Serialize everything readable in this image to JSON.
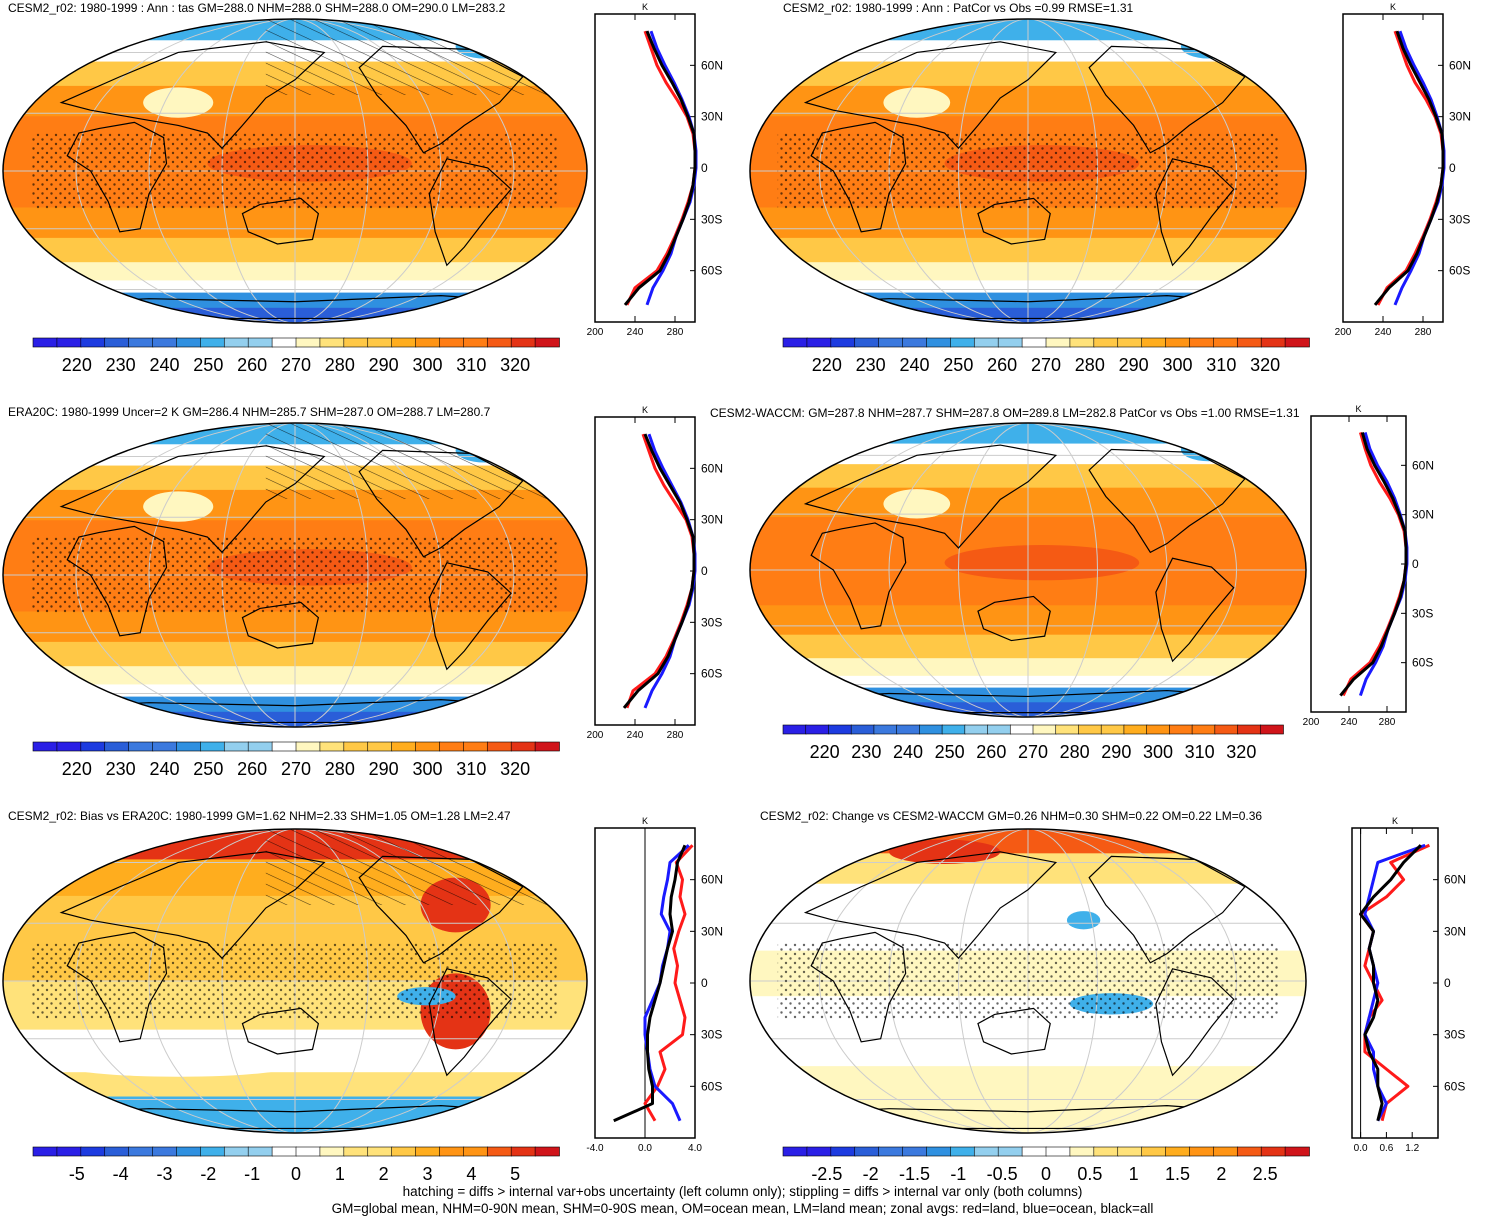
{
  "panels": [
    {
      "id": "p1",
      "title": "CESM2_r02: 1980-1999 : Ann : tas GM=288.0 NHM=288.0 SHM=288.0 OM=290.0 LM=283.2",
      "field": "temp",
      "hatching": true,
      "stippling": true,
      "colorbar_labels": [
        "220",
        "230",
        "240",
        "250",
        "260",
        "270",
        "280",
        "290",
        "300",
        "310",
        "320"
      ],
      "zonal_axis_labels": [
        "200",
        "240",
        "280"
      ],
      "zonal_xlim": [
        200,
        300
      ],
      "zonal_xticks": [
        200,
        240,
        280
      ],
      "zonal_unit": "K"
    },
    {
      "id": "p2",
      "title": "CESM2_r02: 1980-1999 : Ann : PatCor vs Obs =0.99 RMSE=1.31",
      "field": "temp",
      "hatching": false,
      "stippling": true,
      "colorbar_labels": [
        "220",
        "230",
        "240",
        "250",
        "260",
        "270",
        "280",
        "290",
        "300",
        "310",
        "320"
      ],
      "zonal_axis_labels": [
        "200",
        "240",
        "280"
      ],
      "zonal_xlim": [
        200,
        300
      ],
      "zonal_xticks": [
        200,
        240,
        280
      ],
      "zonal_unit": "K"
    },
    {
      "id": "p3",
      "title": "ERA20C: 1980-1999 Uncer=2 K GM=286.4 NHM=285.7 SHM=287.0 OM=288.7 LM=280.7",
      "field": "temp",
      "hatching": true,
      "stippling": true,
      "colorbar_labels": [
        "220",
        "230",
        "240",
        "250",
        "260",
        "270",
        "280",
        "290",
        "300",
        "310",
        "320"
      ],
      "zonal_axis_labels": [
        "200",
        "240",
        "280"
      ],
      "zonal_xlim": [
        200,
        300
      ],
      "zonal_xticks": [
        200,
        240,
        280
      ],
      "zonal_unit": "K"
    },
    {
      "id": "p4",
      "title": "CESM2-WACCM: GM=287.8 NHM=287.7 SHM=287.8 OM=289.8 LM=282.8 PatCor vs Obs =1.00 RMSE=1.31",
      "field": "temp",
      "hatching": false,
      "stippling": false,
      "colorbar_labels": [
        "220",
        "230",
        "240",
        "250",
        "260",
        "270",
        "280",
        "290",
        "300",
        "310",
        "320"
      ],
      "zonal_axis_labels": [
        "200",
        "240",
        "280"
      ],
      "zonal_xlim": [
        200,
        300
      ],
      "zonal_xticks": [
        200,
        240,
        280
      ],
      "zonal_unit": "K"
    },
    {
      "id": "p5",
      "title": "CESM2_r02: Bias vs ERA20C: 1980-1999 GM=1.62 NHM=2.33 SHM=1.05 OM=1.28 LM=2.47",
      "field": "bias",
      "hatching": true,
      "stippling": true,
      "colorbar_labels": [
        "-5",
        "-4",
        "-3",
        "-2",
        "-1",
        "0",
        "1",
        "2",
        "3",
        "4",
        "5"
      ],
      "zonal_axis_labels": [
        "-4.0",
        "0.0",
        "4.0"
      ],
      "zonal_xlim": [
        -4,
        4
      ],
      "zonal_xticks": [
        -4,
        0,
        4
      ],
      "zonal_unit": "K"
    },
    {
      "id": "p6",
      "title": "CESM2_r02: Change vs CESM2-WACCM GM=0.26 NHM=0.30 SHM=0.22 OM=0.22 LM=0.36",
      "field": "change",
      "hatching": false,
      "stippling": true,
      "colorbar_labels": [
        "-2.5",
        "-2",
        "-1.5",
        "-1",
        "-0.5",
        "0",
        "0.5",
        "1",
        "1.5",
        "2",
        "2.5"
      ],
      "zonal_axis_labels": [
        "0.0",
        "0.6",
        "1.2"
      ],
      "zonal_xlim": [
        -0.2,
        1.8
      ],
      "zonal_xticks": [
        0,
        0.6,
        1.2
      ],
      "zonal_unit": "K"
    }
  ],
  "lat_labels": [
    "60N",
    "30N",
    "0",
    "30S",
    "60S"
  ],
  "colors": {
    "temp": [
      "#2a1fe6",
      "#1d3be0",
      "#2a5ed8",
      "#3b79de",
      "#2f90e0",
      "#3fb0ea",
      "#93cfee",
      "#ffffff",
      "#fff7c0",
      "#ffe27a",
      "#ffc846",
      "#ffad1e",
      "#ff9414",
      "#ff7d14",
      "#f55a14",
      "#e43315",
      "#d0141a"
    ],
    "diff": [
      "#2a1fe6",
      "#1d3be0",
      "#2a5ed8",
      "#3b79de",
      "#2f90e0",
      "#3fb0ea",
      "#93cfee",
      "#ffffff",
      "#ffffff",
      "#fff7c0",
      "#ffe27a",
      "#ffc846",
      "#ffad1e",
      "#ff9414",
      "#f55a14",
      "#e43315",
      "#d0141a"
    ],
    "land_line": "#ff1a1a",
    "ocean_line": "#1a1aff",
    "all_line": "#000000"
  },
  "chart_data": [
    {
      "type": "line",
      "panel": "CESM2_r02 1980-1999 tas",
      "y": [
        80,
        70,
        60,
        50,
        40,
        30,
        20,
        10,
        0,
        -10,
        -20,
        -30,
        -40,
        -50,
        -60,
        -70,
        -80
      ],
      "series": [
        {
          "name": "land",
          "values": [
            250,
            256,
            262,
            271,
            282,
            292,
            298,
            300,
            300,
            298,
            293,
            287,
            280,
            272,
            262,
            240,
            232
          ]
        },
        {
          "name": "ocean",
          "values": [
            256,
            262,
            270,
            279,
            287,
            294,
            299,
            301,
            301,
            299,
            295,
            288,
            281,
            276,
            268,
            258,
            252
          ]
        },
        {
          "name": "all",
          "values": [
            252,
            259,
            267,
            277,
            286,
            293,
            299,
            300,
            300,
            298,
            294,
            288,
            281,
            274,
            265,
            244,
            230
          ]
        }
      ],
      "xlim": [
        200,
        300
      ]
    },
    {
      "type": "line",
      "panel": "CESM2_r02 PatCor vs Obs",
      "y": [
        80,
        70,
        60,
        50,
        40,
        30,
        20,
        10,
        0,
        -10,
        -20,
        -30,
        -40,
        -50,
        -60,
        -70,
        -80
      ],
      "series": [
        {
          "name": "land",
          "values": [
            252,
            258,
            264,
            272,
            283,
            292,
            298,
            300,
            300,
            298,
            293,
            287,
            280,
            272,
            263,
            244,
            235
          ]
        },
        {
          "name": "ocean",
          "values": [
            257,
            263,
            271,
            280,
            288,
            294,
            299,
            301,
            301,
            299,
            295,
            288,
            281,
            276,
            268,
            259,
            252
          ]
        },
        {
          "name": "all",
          "values": [
            254,
            260,
            268,
            277,
            286,
            293,
            299,
            300,
            300,
            298,
            294,
            288,
            281,
            274,
            265,
            246,
            232
          ]
        }
      ],
      "xlim": [
        200,
        300
      ]
    },
    {
      "type": "line",
      "panel": "ERA20C 1980-1999",
      "y": [
        80,
        70,
        60,
        50,
        40,
        30,
        20,
        10,
        0,
        -10,
        -20,
        -30,
        -40,
        -50,
        -60,
        -70,
        -80
      ],
      "series": [
        {
          "name": "land",
          "values": [
            248,
            254,
            260,
            269,
            280,
            291,
            297,
            299,
            299,
            297,
            292,
            286,
            279,
            271,
            260,
            238,
            232
          ]
        },
        {
          "name": "ocean",
          "values": [
            254,
            260,
            268,
            277,
            286,
            293,
            298,
            300,
            300,
            298,
            294,
            287,
            280,
            275,
            267,
            257,
            250
          ]
        },
        {
          "name": "all",
          "values": [
            250,
            257,
            265,
            275,
            285,
            292,
            298,
            299,
            299,
            297,
            293,
            287,
            280,
            273,
            263,
            243,
            229
          ]
        }
      ],
      "xlim": [
        200,
        300
      ]
    },
    {
      "type": "line",
      "panel": "CESM2-WACCM",
      "y": [
        80,
        70,
        60,
        50,
        40,
        30,
        20,
        10,
        0,
        -10,
        -20,
        -30,
        -40,
        -50,
        -60,
        -70,
        -80
      ],
      "series": [
        {
          "name": "land",
          "values": [
            252,
            257,
            263,
            272,
            283,
            292,
            298,
            300,
            300,
            298,
            293,
            287,
            280,
            272,
            262,
            242,
            234
          ]
        },
        {
          "name": "ocean",
          "values": [
            257,
            262,
            270,
            280,
            288,
            294,
            299,
            301,
            301,
            299,
            295,
            288,
            281,
            276,
            268,
            258,
            252
          ]
        },
        {
          "name": "all",
          "values": [
            254,
            259,
            267,
            277,
            286,
            293,
            299,
            300,
            300,
            298,
            294,
            288,
            281,
            274,
            265,
            245,
            231
          ]
        }
      ],
      "xlim": [
        200,
        300
      ]
    },
    {
      "type": "line",
      "panel": "Bias vs ERA20C",
      "y": [
        80,
        70,
        60,
        50,
        40,
        30,
        20,
        10,
        0,
        -10,
        -20,
        -30,
        -40,
        -50,
        -60,
        -70,
        -80
      ],
      "series": [
        {
          "name": "land",
          "values": [
            3.8,
            2.5,
            3.0,
            2.8,
            3.2,
            2.7,
            2.3,
            2.6,
            2.4,
            2.8,
            3.2,
            3.0,
            1.2,
            1.6,
            1.0,
            0.0,
            0.8
          ]
        },
        {
          "name": "ocean",
          "values": [
            3.5,
            2.0,
            1.8,
            1.5,
            1.3,
            2.0,
            1.8,
            1.4,
            1.2,
            0.6,
            0.0,
            0.0,
            0.2,
            0.4,
            0.8,
            2.2,
            2.8
          ]
        },
        {
          "name": "all",
          "values": [
            3.2,
            2.6,
            2.4,
            2.1,
            2.0,
            2.2,
            1.8,
            1.5,
            1.2,
            0.8,
            0.4,
            0.2,
            0.2,
            0.3,
            0.6,
            0.6,
            -2.5
          ]
        }
      ],
      "xlim": [
        -4,
        4
      ]
    },
    {
      "type": "line",
      "panel": "Change vs CESM2-WACCM",
      "y": [
        80,
        70,
        60,
        50,
        40,
        30,
        20,
        10,
        0,
        -10,
        -20,
        -30,
        -40,
        -50,
        -60,
        -70,
        -80
      ],
      "series": [
        {
          "name": "land",
          "values": [
            1.6,
            0.7,
            1.0,
            0.6,
            0.0,
            0.3,
            0.2,
            0.1,
            0.3,
            0.5,
            0.2,
            0.1,
            0.1,
            0.6,
            1.1,
            0.6,
            0.5
          ]
        },
        {
          "name": "ocean",
          "values": [
            1.5,
            0.4,
            0.3,
            0.2,
            0.1,
            0.3,
            0.2,
            0.3,
            0.4,
            0.3,
            0.2,
            0.1,
            0.3,
            0.3,
            0.4,
            0.6,
            0.4
          ]
        },
        {
          "name": "all",
          "values": [
            1.4,
            1.0,
            0.7,
            0.3,
            0.0,
            0.3,
            0.2,
            0.3,
            0.3,
            0.4,
            0.3,
            0.1,
            0.2,
            0.4,
            0.4,
            0.5,
            0.4
          ]
        }
      ],
      "xlim": [
        -0.2,
        1.8
      ]
    }
  ],
  "footer": {
    "line1": "hatching = diffs > internal var+obs uncertainty (left column only); stippling = diffs > internal var only (both columns)",
    "line2": "GM=global mean, NHM=0-90N mean, SHM=0-90S mean, OM=ocean mean, LM=land mean; zonal avgs: red=land, blue=ocean, black=all"
  }
}
